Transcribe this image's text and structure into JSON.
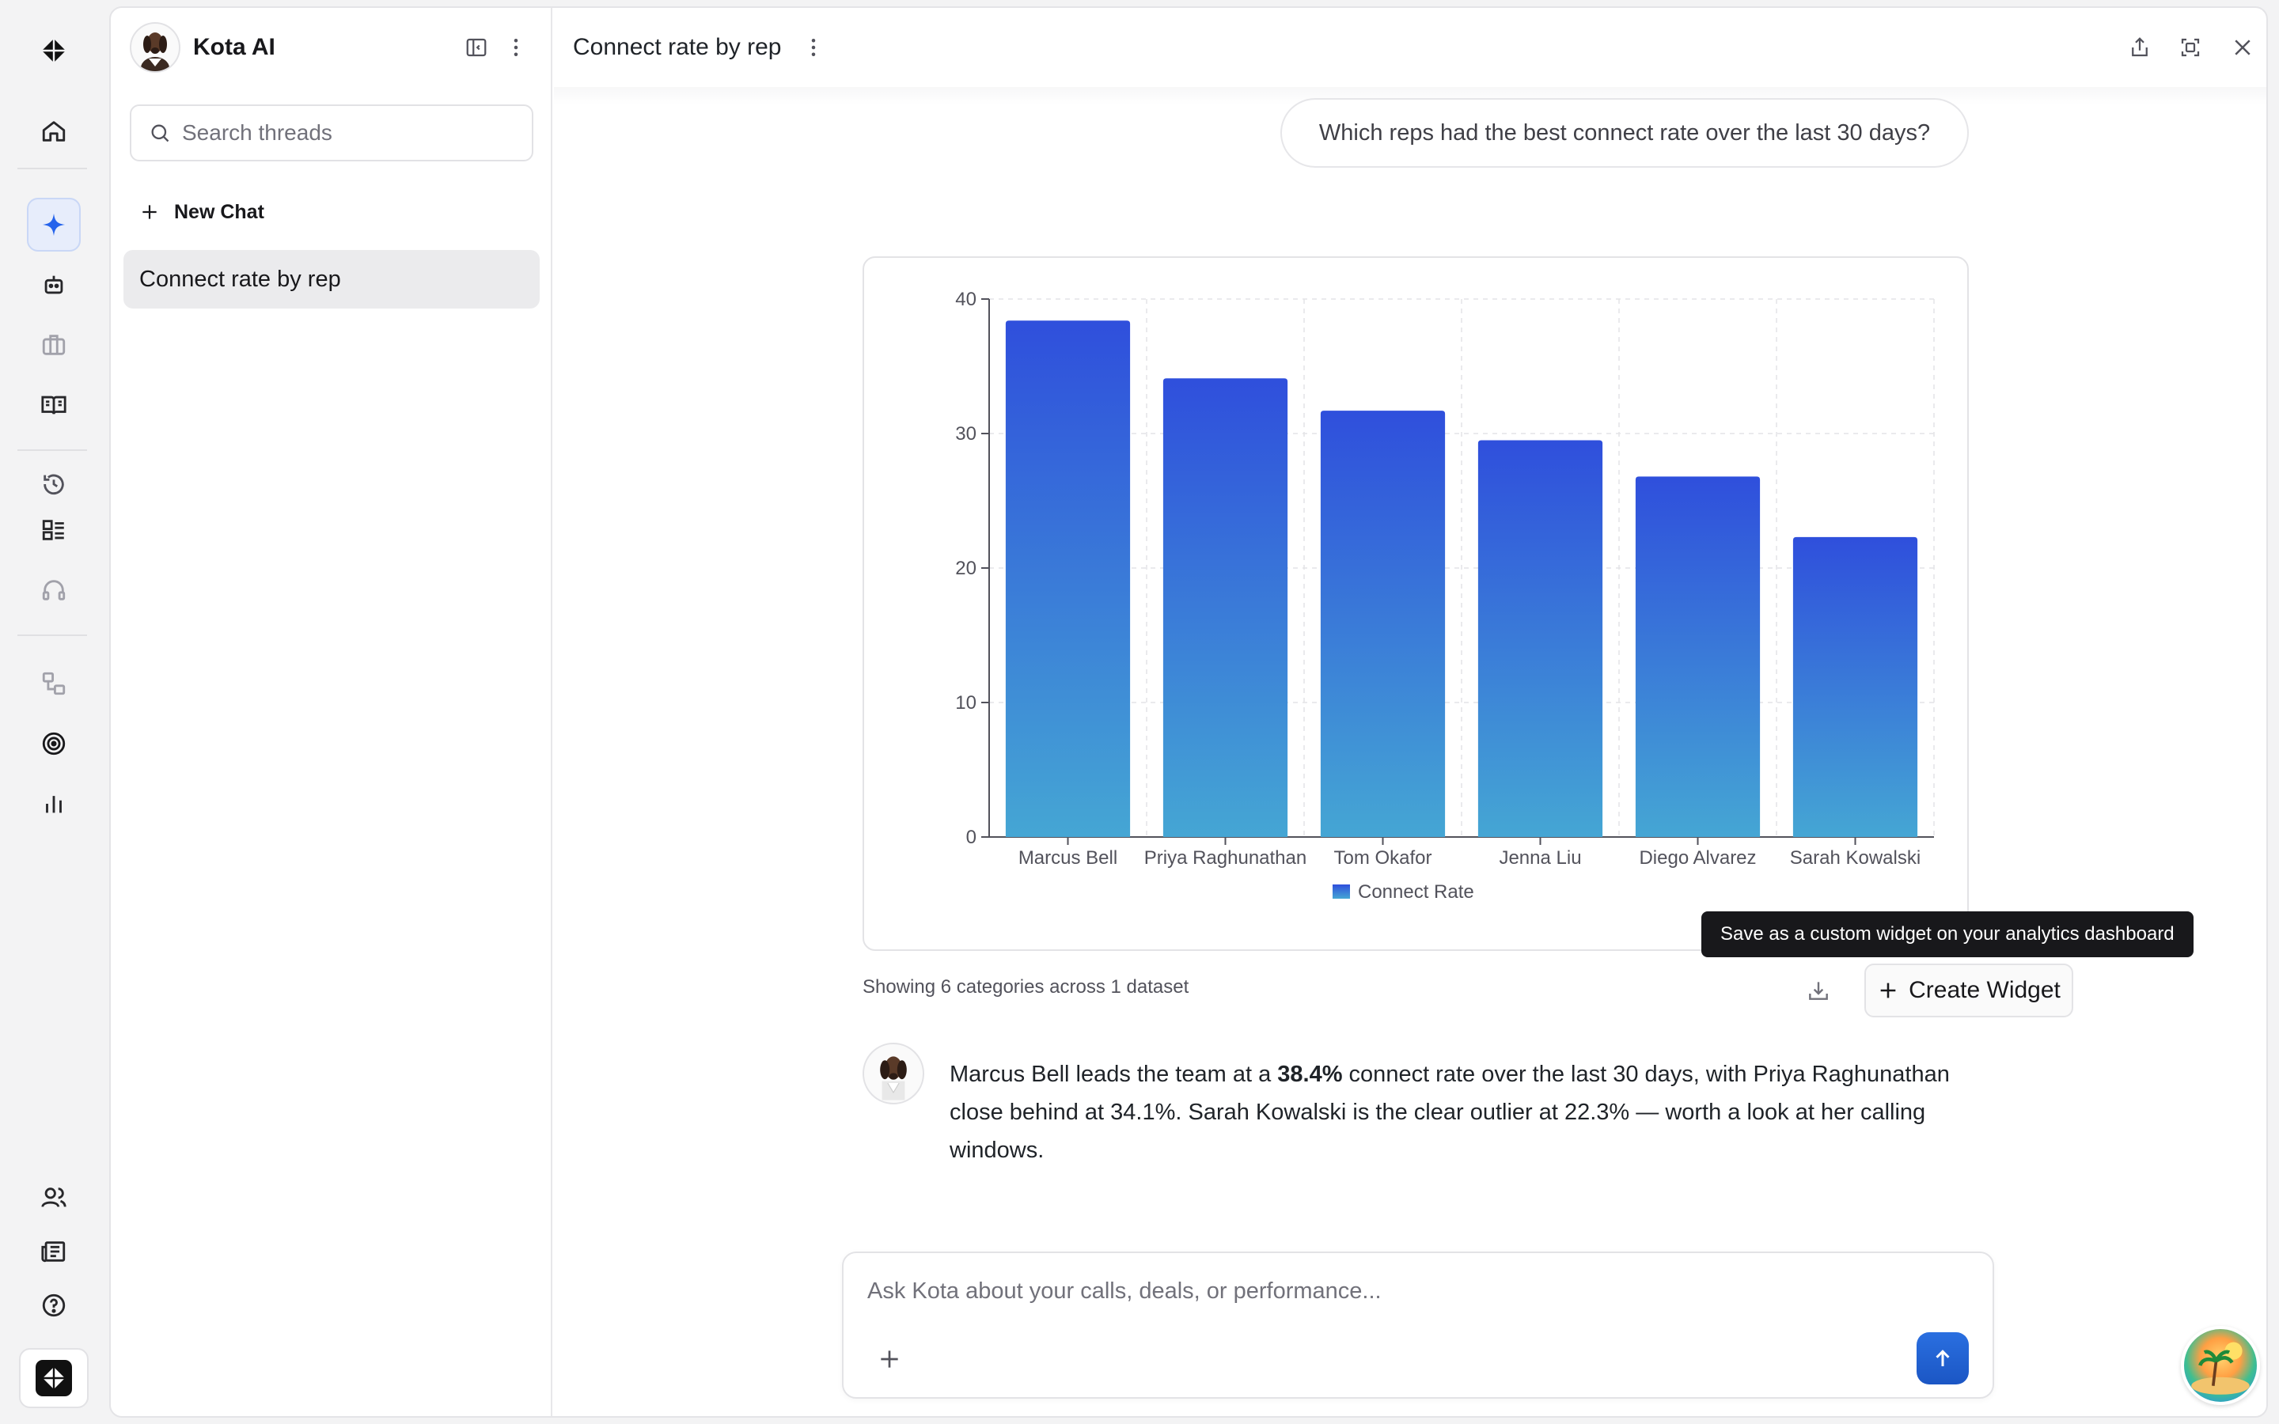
{
  "app": {
    "name": "Kota AI",
    "brand_color": "#111111",
    "accent": "#2563eb"
  },
  "rail": {
    "items": [
      {
        "icon": "logo-icon"
      },
      {
        "icon": "home-icon"
      },
      {
        "icon": "sparkle-icon",
        "active": true
      },
      {
        "icon": "bot-icon"
      },
      {
        "icon": "briefcase-icon"
      },
      {
        "icon": "book-icon"
      },
      {
        "icon": "history-icon"
      },
      {
        "icon": "list-icon"
      },
      {
        "icon": "headset-icon"
      },
      {
        "icon": "workflow-icon"
      },
      {
        "icon": "target-icon"
      },
      {
        "icon": "bar-chart-icon"
      },
      {
        "icon": "users-icon"
      },
      {
        "icon": "newspaper-icon"
      },
      {
        "icon": "help-icon"
      }
    ]
  },
  "threads": {
    "title": "Kota AI",
    "search_placeholder": "Search threads",
    "new_chat_label": "New Chat",
    "items": [
      {
        "label": "Connect rate by rep",
        "active": true
      }
    ]
  },
  "chat": {
    "title": "Connect rate by rep",
    "user_message": "Which reps had the best connect rate over the last 30 days?",
    "chart_note": "Showing 6 categories across 1 dataset",
    "create_widget_label": "Create Widget",
    "tooltip": "Save as a custom widget on your analytics dashboard",
    "assistant": {
      "part1": "Marcus Bell leads the team at a ",
      "highlight": "38.4%",
      "part2": " connect rate over the last 30 days, with Priya Raghunathan close behind at 34.1%. Sarah Kowalski is the clear outlier at 22.3% — worth a look at her calling windows."
    },
    "composer_placeholder": "Ask Kota about your calls, deals, or performance..."
  },
  "chart_data": {
    "type": "bar",
    "categories": [
      "Marcus Bell",
      "Priya Raghunathan",
      "Tom Okafor",
      "Jenna Liu",
      "Diego Alvarez",
      "Sarah Kowalski"
    ],
    "series": [
      {
        "name": "Connect Rate",
        "values": [
          38.4,
          34.1,
          31.7,
          29.5,
          26.8,
          22.3
        ]
      }
    ],
    "yticks": [
      0,
      10,
      20,
      30,
      40
    ],
    "ylim": [
      0,
      40
    ],
    "grid": true,
    "legend": "bottom",
    "colors": {
      "bar_top": "#2f4fdc",
      "bar_bottom": "#45a6d4"
    }
  }
}
